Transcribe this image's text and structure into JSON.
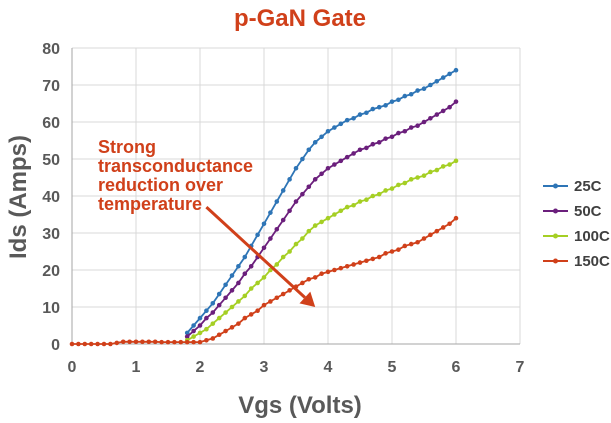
{
  "chart_data": {
    "type": "line",
    "title": "p-GaN Gate",
    "xlabel": "Vgs (Volts)",
    "ylabel": "Ids (Amps)",
    "xlim": [
      0,
      7
    ],
    "ylim": [
      0,
      80
    ],
    "xticks": [
      0,
      1,
      2,
      3,
      4,
      5,
      6,
      7
    ],
    "yticks": [
      0,
      10,
      20,
      30,
      40,
      50,
      60,
      70,
      80
    ],
    "grid": true,
    "legend_position": "right",
    "annotation": {
      "lines": [
        "Strong",
        "transconductance",
        "reduction over",
        "temperature"
      ],
      "color": "#d0401a",
      "arrow_from": [
        2.1,
        37
      ],
      "arrow_to": [
        3.8,
        10
      ]
    },
    "title_color": "#d0401a",
    "series": [
      {
        "name": "25C",
        "color": "#2e75b6",
        "x": [
          1.8,
          1.9,
          2.0,
          2.1,
          2.2,
          2.3,
          2.4,
          2.5,
          2.6,
          2.7,
          2.8,
          2.9,
          3.0,
          3.1,
          3.2,
          3.3,
          3.4,
          3.5,
          3.6,
          3.7,
          3.8,
          3.9,
          4.0,
          4.1,
          4.2,
          4.3,
          4.4,
          4.5,
          4.6,
          4.7,
          4.8,
          4.9,
          5.0,
          5.1,
          5.2,
          5.3,
          5.4,
          5.5,
          5.6,
          5.7,
          5.8,
          5.9,
          6.0
        ],
        "y": [
          3,
          5,
          7,
          9,
          11,
          13.5,
          16,
          18.5,
          21,
          23.5,
          26.5,
          29.5,
          32.5,
          35.5,
          38.5,
          41.5,
          44.5,
          47.5,
          50,
          52.5,
          54.5,
          56,
          57.5,
          58.5,
          59.5,
          60.5,
          61,
          62,
          62.5,
          63.5,
          64,
          64.5,
          65.5,
          66,
          67,
          67.5,
          68.5,
          69,
          70,
          71,
          72,
          73,
          74
        ]
      },
      {
        "name": "50C",
        "color": "#6b1f7c",
        "x": [
          1.8,
          1.9,
          2.0,
          2.1,
          2.2,
          2.3,
          2.4,
          2.5,
          2.6,
          2.7,
          2.8,
          2.9,
          3.0,
          3.1,
          3.2,
          3.3,
          3.4,
          3.5,
          3.6,
          3.7,
          3.8,
          3.9,
          4.0,
          4.1,
          4.2,
          4.3,
          4.4,
          4.5,
          4.6,
          4.7,
          4.8,
          4.9,
          5.0,
          5.1,
          5.2,
          5.3,
          5.4,
          5.5,
          5.6,
          5.7,
          5.8,
          5.9,
          6.0
        ],
        "y": [
          2,
          3.5,
          5,
          7,
          8.5,
          10.5,
          12.5,
          14.5,
          16.5,
          19,
          21,
          23.5,
          26,
          28.5,
          31,
          33.5,
          36,
          38.5,
          40.5,
          42.5,
          44.5,
          46,
          47.5,
          48.5,
          49.5,
          50.5,
          51.5,
          52.5,
          53,
          54,
          54.5,
          55.5,
          56,
          57,
          57.5,
          58.5,
          59,
          60,
          61,
          62,
          63,
          64,
          65.5
        ]
      },
      {
        "name": "100C",
        "color": "#a5cf24",
        "x": [
          1.8,
          1.9,
          2.0,
          2.1,
          2.2,
          2.3,
          2.4,
          2.5,
          2.6,
          2.7,
          2.8,
          2.9,
          3.0,
          3.1,
          3.2,
          3.3,
          3.4,
          3.5,
          3.6,
          3.7,
          3.8,
          3.9,
          4.0,
          4.1,
          4.2,
          4.3,
          4.4,
          4.5,
          4.6,
          4.7,
          4.8,
          4.9,
          5.0,
          5.1,
          5.2,
          5.3,
          5.4,
          5.5,
          5.6,
          5.7,
          5.8,
          5.9,
          6.0
        ],
        "y": [
          1,
          2,
          3,
          4,
          5.5,
          7,
          8.5,
          10,
          11.5,
          13,
          15,
          16.5,
          18,
          20,
          21.5,
          23.5,
          25,
          27,
          28.5,
          30.5,
          32,
          33,
          34,
          35,
          36,
          37,
          37.5,
          38.5,
          39,
          40,
          40.5,
          41.5,
          42,
          43,
          43.5,
          44.5,
          45,
          45.5,
          46.5,
          47,
          48,
          48.5,
          49.5
        ]
      },
      {
        "name": "150C",
        "color": "#d0401a",
        "x": [
          0.0,
          0.1,
          0.2,
          0.3,
          0.4,
          0.5,
          0.6,
          0.7,
          0.8,
          0.9,
          1.0,
          1.1,
          1.2,
          1.3,
          1.4,
          1.5,
          1.6,
          1.7,
          1.8,
          1.9,
          2.0,
          2.1,
          2.2,
          2.3,
          2.4,
          2.5,
          2.6,
          2.7,
          2.8,
          2.9,
          3.0,
          3.1,
          3.2,
          3.3,
          3.4,
          3.5,
          3.6,
          3.7,
          3.8,
          3.9,
          4.0,
          4.1,
          4.2,
          4.3,
          4.4,
          4.5,
          4.6,
          4.7,
          4.8,
          4.9,
          5.0,
          5.1,
          5.2,
          5.3,
          5.4,
          5.5,
          5.6,
          5.7,
          5.8,
          5.9,
          6.0
        ],
        "y": [
          0,
          0,
          0,
          0,
          0,
          0,
          0,
          0.3,
          0.6,
          0.6,
          0.6,
          0.6,
          0.6,
          0.6,
          0.5,
          0.5,
          0.5,
          0.5,
          0.5,
          0.5,
          0.5,
          1,
          1.5,
          2.5,
          3.5,
          4.5,
          5.5,
          7,
          8,
          9,
          10.5,
          11.5,
          12.5,
          13.5,
          14.5,
          15.5,
          16.5,
          17.5,
          18,
          19,
          19.5,
          20,
          20.5,
          21,
          21.5,
          22,
          22.5,
          23,
          23.5,
          24.5,
          25,
          25.5,
          26.5,
          27,
          27.5,
          28.5,
          29.5,
          30.5,
          31.5,
          32.5,
          34
        ]
      }
    ]
  }
}
